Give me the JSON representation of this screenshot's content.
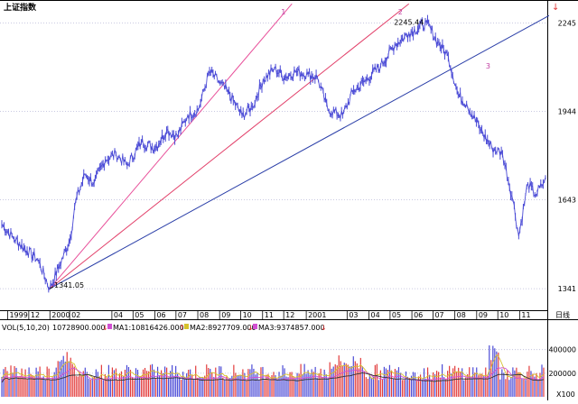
{
  "header": {
    "title": "上证指数",
    "top_right_marker": "↓"
  },
  "chart_data": [
    {
      "type": "line",
      "panel": "price",
      "title": "上证指数",
      "x_axis": {
        "tick_labels": [
          "1999",
          "12",
          "2000",
          "02",
          "04",
          "05",
          "06",
          "07",
          "08",
          "09",
          "10",
          "11",
          "12",
          "2001",
          "03",
          "04",
          "05",
          "06",
          "07",
          "08",
          "09",
          "10",
          "11"
        ],
        "period_label": "日线"
      },
      "y_axis": {
        "ticks": [
          1341,
          1643,
          1944,
          2245
        ],
        "tick_labels": [
          "1341",
          "1643",
          "1944",
          "2245"
        ],
        "range": [
          1280,
          2280
        ]
      },
      "grid": "horizontal dotted",
      "series": [
        {
          "color": "#4b4bd6",
          "points": [
            [
              "1999-10-20",
              1560
            ],
            [
              "1999-11-05",
              1515
            ],
            [
              "1999-11-25",
              1470
            ],
            [
              "1999-12-10",
              1440
            ],
            [
              "1999-12-27",
              1341.05
            ],
            [
              "2000-01-10",
              1420
            ],
            [
              "2000-01-25",
              1510
            ],
            [
              "2000-02-02",
              1640
            ],
            [
              "2000-02-15",
              1730
            ],
            [
              "2000-02-28",
              1700
            ],
            [
              "2000-03-15",
              1780
            ],
            [
              "2000-03-30",
              1800
            ],
            [
              "2000-04-15",
              1760
            ],
            [
              "2000-05-05",
              1840
            ],
            [
              "2000-05-25",
              1820
            ],
            [
              "2000-06-10",
              1880
            ],
            [
              "2000-06-25",
              1860
            ],
            [
              "2000-07-10",
              1930
            ],
            [
              "2000-07-25",
              1950
            ],
            [
              "2000-08-10",
              2080
            ],
            [
              "2000-08-25",
              2040
            ],
            [
              "2000-09-05",
              2010
            ],
            [
              "2000-09-25",
              1930
            ],
            [
              "2000-10-10",
              1960
            ],
            [
              "2000-10-25",
              2050
            ],
            [
              "2000-11-10",
              2090
            ],
            [
              "2000-11-25",
              2060
            ],
            [
              "2000-12-10",
              2080
            ],
            [
              "2000-12-28",
              2070
            ],
            [
              "2001-01-10",
              2060
            ],
            [
              "2001-01-25",
              1950
            ],
            [
              "2001-02-15",
              1930
            ],
            [
              "2001-03-01",
              2010
            ],
            [
              "2001-03-20",
              2050
            ],
            [
              "2001-04-10",
              2100
            ],
            [
              "2001-04-30",
              2170
            ],
            [
              "2001-05-20",
              2210
            ],
            [
              "2001-06-14",
              2245.44
            ],
            [
              "2001-06-30",
              2180
            ],
            [
              "2001-07-15",
              2130
            ],
            [
              "2001-07-29",
              2000
            ],
            [
              "2001-08-10",
              1970
            ],
            [
              "2001-08-30",
              1880
            ],
            [
              "2001-09-15",
              1820
            ],
            [
              "2001-09-30",
              1800
            ],
            [
              "2001-10-15",
              1640
            ],
            [
              "2001-10-23",
              1520
            ],
            [
              "2001-11-05",
              1700
            ],
            [
              "2001-11-15",
              1660
            ],
            [
              "2001-11-25",
              1690
            ],
            [
              "2001-11-30",
              1720
            ]
          ]
        }
      ],
      "trendlines": [
        {
          "label": "1",
          "color": "#e8509a",
          "from": [
            "1999-12-27",
            1341.05
          ],
          "to": [
            "2000-12-05",
            2310
          ]
        },
        {
          "label": "2",
          "color": "#e2406a",
          "from": [
            "1999-12-27",
            1341.05
          ],
          "to": [
            "2001-05-20",
            2310
          ]
        },
        {
          "label": "3",
          "color": "#2b3fa8",
          "from": [
            "1999-12-27",
            1341.05
          ],
          "to": [
            "2001-12-05",
            2270
          ]
        }
      ],
      "annotations": [
        {
          "text": "1341.05",
          "x": "1999-12-27",
          "y": 1341.05
        },
        {
          "text": "2245.44",
          "x": "2001-06-14",
          "y": 2245.44
        }
      ]
    },
    {
      "type": "bar",
      "panel": "volume",
      "legend": {
        "vol": "VOL(5,10,20)",
        "vol_value": "10728900.000",
        "ma1": "MA1:10816426.000",
        "ma2": "MA2:8927709.000",
        "ma3": "MA3:9374857.000"
      },
      "y_axis": {
        "ticks": [
          200000,
          400000
        ],
        "tick_labels": [
          "200000",
          "400000"
        ],
        "bottom_label": "X100"
      },
      "colors": {
        "up": "#e23b3b",
        "down": "#4b4bd6",
        "ma1": "#ffffff",
        "ma2": "#d6c12c",
        "ma3": "#d24fd2"
      }
    }
  ]
}
